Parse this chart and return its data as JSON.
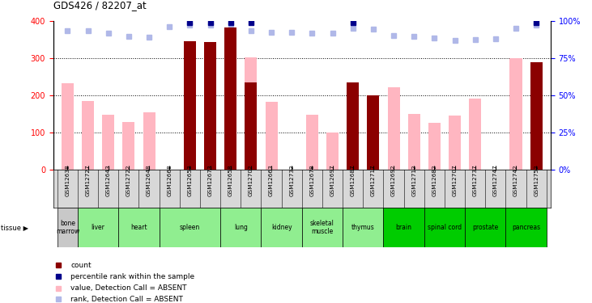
{
  "title": "GDS426 / 82207_at",
  "samples": [
    "GSM12638",
    "GSM12727",
    "GSM12643",
    "GSM12722",
    "GSM12648",
    "GSM12668",
    "GSM12653",
    "GSM12673",
    "GSM12658",
    "GSM12702",
    "GSM12663",
    "GSM12732",
    "GSM12678",
    "GSM12697",
    "GSM12687",
    "GSM12717",
    "GSM12692",
    "GSM12712",
    "GSM12682",
    "GSM12707",
    "GSM12737",
    "GSM12747",
    "GSM12742",
    "GSM12752"
  ],
  "tissues": [
    {
      "name": "bone\nmarrow",
      "start": 0,
      "end": 1,
      "color": "#c8c8c8"
    },
    {
      "name": "liver",
      "start": 1,
      "end": 3,
      "color": "#90ee90"
    },
    {
      "name": "heart",
      "start": 3,
      "end": 5,
      "color": "#90ee90"
    },
    {
      "name": "spleen",
      "start": 5,
      "end": 8,
      "color": "#90ee90"
    },
    {
      "name": "lung",
      "start": 8,
      "end": 10,
      "color": "#90ee90"
    },
    {
      "name": "kidney",
      "start": 10,
      "end": 12,
      "color": "#90ee90"
    },
    {
      "name": "skeletal\nmuscle",
      "start": 12,
      "end": 14,
      "color": "#90ee90"
    },
    {
      "name": "thymus",
      "start": 14,
      "end": 16,
      "color": "#90ee90"
    },
    {
      "name": "brain",
      "start": 16,
      "end": 18,
      "color": "#00cc00"
    },
    {
      "name": "spinal cord",
      "start": 18,
      "end": 20,
      "color": "#00cc00"
    },
    {
      "name": "prostate",
      "start": 20,
      "end": 22,
      "color": "#00cc00"
    },
    {
      "name": "pancreas",
      "start": 22,
      "end": 24,
      "color": "#00cc00"
    }
  ],
  "bar_values": [
    null,
    null,
    null,
    null,
    null,
    null,
    347,
    345,
    383,
    235,
    null,
    null,
    null,
    null,
    235,
    200,
    null,
    null,
    null,
    null,
    null,
    null,
    null,
    290
  ],
  "pink_values": [
    232,
    184,
    147,
    128,
    154,
    null,
    null,
    null,
    null,
    303,
    183,
    null,
    148,
    101,
    null,
    null,
    221,
    150,
    127,
    145,
    192,
    null,
    300,
    null
  ],
  "blue_squares": [
    0,
    0,
    0,
    0,
    0,
    0,
    1,
    1,
    1,
    1,
    0,
    0,
    0,
    0,
    1,
    0,
    0,
    0,
    0,
    0,
    0,
    0,
    0,
    1
  ],
  "light_blue_values": [
    375,
    375,
    368,
    360,
    358,
    385,
    390,
    390,
    390,
    375,
    370,
    370,
    368,
    368,
    380,
    378,
    362,
    360,
    355,
    348,
    350,
    353,
    380,
    390
  ],
  "ylim_left": [
    0,
    400
  ],
  "ylim_right": [
    0,
    100
  ],
  "yticks_left": [
    0,
    100,
    200,
    300,
    400
  ],
  "yticks_right": [
    0,
    25,
    50,
    75,
    100
  ],
  "ytick_labels_right": [
    "0%",
    "25%",
    "50%",
    "75%",
    "100%"
  ],
  "bar_color": "#8b0000",
  "pink_color": "#ffb6c1",
  "blue_color": "#00008b",
  "light_blue_color": "#b0b8e8",
  "legend_items": [
    "count",
    "percentile rank within the sample",
    "value, Detection Call = ABSENT",
    "rank, Detection Call = ABSENT"
  ]
}
